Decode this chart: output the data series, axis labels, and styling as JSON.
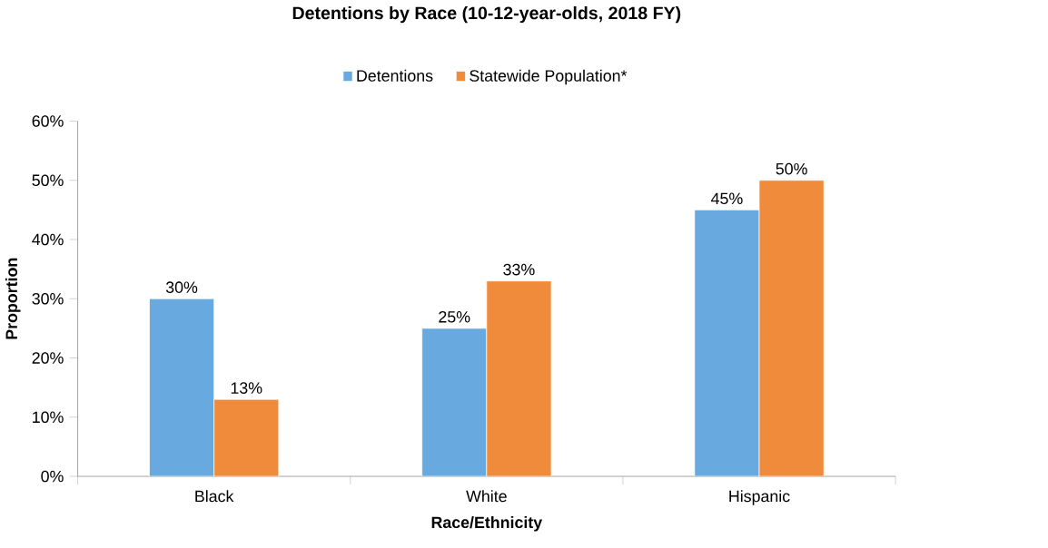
{
  "chart_data": {
    "type": "bar",
    "title": "Detentions by Race (10-12-year-olds, 2018 FY)",
    "xlabel": "Race/Ethnicity",
    "ylabel": "Proportion",
    "categories": [
      "Black",
      "White",
      "Hispanic"
    ],
    "series": [
      {
        "name": "Detentions",
        "color": "#68aadf",
        "values": [
          30,
          25,
          45
        ],
        "value_labels": [
          "30%",
          "25%",
          "45%"
        ]
      },
      {
        "name": "Statewide Population*",
        "color": "#f08b3c",
        "values": [
          13,
          33,
          50
        ],
        "value_labels": [
          "13%",
          "33%",
          "50%"
        ]
      }
    ],
    "ylim": [
      0,
      60
    ],
    "yticks": [
      {
        "value": 0,
        "label": "0%"
      },
      {
        "value": 10,
        "label": "10%"
      },
      {
        "value": 20,
        "label": "20%"
      },
      {
        "value": 30,
        "label": "30%"
      },
      {
        "value": 40,
        "label": "40%"
      },
      {
        "value": 50,
        "label": "50%"
      },
      {
        "value": 60,
        "label": "60%"
      }
    ],
    "legend": "top"
  }
}
